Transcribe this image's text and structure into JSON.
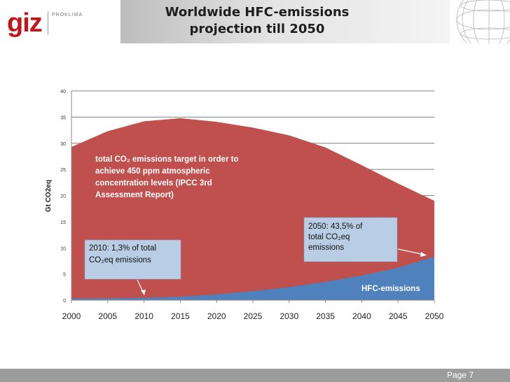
{
  "header": {
    "logo_text": "giz",
    "logo_subtext": "PROKLIMA",
    "title": "Worldwide HFC-emissions\nprojection till 2050"
  },
  "footer": {
    "page": "Page 7"
  },
  "colors": {
    "total_area": "#c0504d",
    "hfc_area": "#4f81bd",
    "callout_fill": "#b9cde5",
    "gridline": "#7f7f7f",
    "footer": "#9c9c9c"
  },
  "chart_data": {
    "type": "area",
    "ylabel": "Gt CO2eq",
    "x": [
      2000,
      2005,
      2010,
      2015,
      2020,
      2025,
      2030,
      2035,
      2040,
      2045,
      2050
    ],
    "ylim": [
      0,
      40
    ],
    "yticks": [
      0,
      5,
      10,
      15,
      20,
      25,
      30,
      35,
      40
    ],
    "grid": true,
    "series": [
      {
        "name": "total CO2 emissions target",
        "values": [
          29.3,
          32.3,
          34.2,
          34.8,
          34.1,
          33.0,
          31.5,
          29.2,
          25.8,
          22.3,
          19.0
        ]
      },
      {
        "name": "HFC-emissions",
        "values": [
          0.3,
          0.35,
          0.45,
          0.65,
          1.1,
          1.7,
          2.5,
          3.5,
          4.7,
          6.2,
          8.3
        ]
      }
    ],
    "annotations": {
      "total_target": "total CO₂ emissions target in order to\nachieve 450 ppm atmospheric\nconcentration levels (IPCC 3rd\nAssessment Report)",
      "callout_2010": "2010: 1,3% of total\nCO₂eq emissions",
      "callout_2050": "2050: 43,5% of\ntotal CO₂eq\nemissions",
      "hfc_label": "HFC-emissions"
    }
  }
}
